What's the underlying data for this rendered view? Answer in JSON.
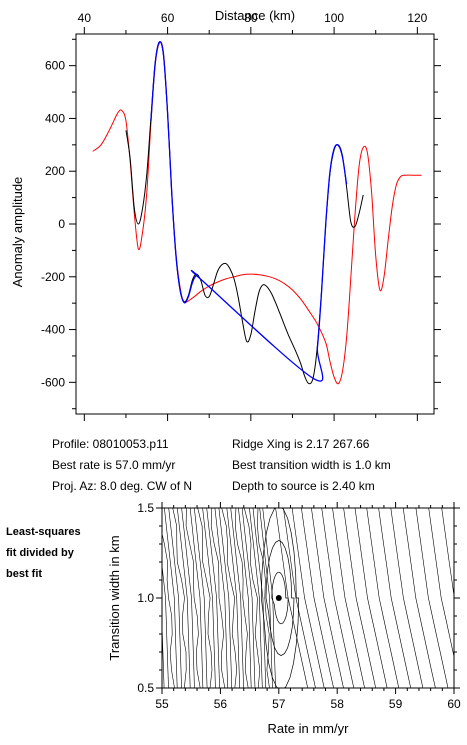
{
  "chart_data": [
    {
      "type": "line",
      "xlabel": "Distance (km)",
      "ylabel": "Anomaly amplitude",
      "xlim": [
        38,
        124
      ],
      "ylim": [
        -720,
        720
      ],
      "xticks": [
        40,
        60,
        80,
        100,
        120
      ],
      "yticks": [
        -600,
        -400,
        -200,
        0,
        200,
        400,
        600
      ],
      "series": [
        {
          "color": "#ff0000",
          "points": [
            [
              42,
              275
            ],
            [
              44,
              300
            ],
            [
              46,
              355
            ],
            [
              48,
              420
            ],
            [
              49,
              430
            ],
            [
              50,
              390
            ],
            [
              51,
              240
            ],
            [
              52,
              40
            ],
            [
              53,
              -95
            ],
            [
              54,
              -30
            ],
            [
              55,
              120
            ],
            [
              56,
              380
            ],
            [
              57,
              600
            ],
            [
              58,
              685
            ],
            [
              59,
              650
            ],
            [
              60,
              420
            ],
            [
              61,
              120
            ],
            [
              62,
              -110
            ],
            [
              63,
              -240
            ],
            [
              64,
              -295
            ],
            [
              66,
              -280
            ],
            [
              68,
              -255
            ],
            [
              70,
              -235
            ],
            [
              72,
              -220
            ],
            [
              74,
              -208
            ],
            [
              76,
              -200
            ],
            [
              78,
              -192
            ],
            [
              80,
              -190
            ],
            [
              82,
              -192
            ],
            [
              84,
              -198
            ],
            [
              86,
              -208
            ],
            [
              88,
              -225
            ],
            [
              90,
              -250
            ],
            [
              92,
              -285
            ],
            [
              94,
              -330
            ],
            [
              96,
              -380
            ],
            [
              98,
              -450
            ],
            [
              99,
              -520
            ],
            [
              100,
              -580
            ],
            [
              101,
              -605
            ],
            [
              102,
              -560
            ],
            [
              103,
              -430
            ],
            [
              104,
              -210
            ],
            [
              105,
              30
            ],
            [
              106,
              220
            ],
            [
              107,
              290
            ],
            [
              108,
              270
            ],
            [
              109,
              120
            ],
            [
              110,
              -120
            ],
            [
              111,
              -250
            ],
            [
              112,
              -200
            ],
            [
              113,
              -60
            ],
            [
              114,
              70
            ],
            [
              115,
              150
            ],
            [
              116,
              180
            ],
            [
              117,
              185
            ],
            [
              119,
              185
            ],
            [
              121,
              185
            ]
          ]
        },
        {
          "color": "#000000",
          "points": [
            [
              50,
              355
            ],
            [
              51,
              250
            ],
            [
              52,
              60
            ],
            [
              53,
              0
            ],
            [
              54,
              60
            ],
            [
              55,
              190
            ],
            [
              56,
              400
            ],
            [
              57,
              610
            ],
            [
              58,
              690
            ],
            [
              59,
              640
            ],
            [
              60,
              420
            ],
            [
              61,
              120
            ],
            [
              62,
              -120
            ],
            [
              63,
              -250
            ],
            [
              64,
              -295
            ],
            [
              65,
              -270
            ],
            [
              66,
              -210
            ],
            [
              67,
              -190
            ],
            [
              68,
              -215
            ],
            [
              69,
              -270
            ],
            [
              70,
              -275
            ],
            [
              71,
              -230
            ],
            [
              72,
              -180
            ],
            [
              73,
              -155
            ],
            [
              74,
              -150
            ],
            [
              75,
              -170
            ],
            [
              76,
              -210
            ],
            [
              77,
              -280
            ],
            [
              78,
              -370
            ],
            [
              79,
              -445
            ],
            [
              80,
              -420
            ],
            [
              81,
              -330
            ],
            [
              82,
              -255
            ],
            [
              83,
              -230
            ],
            [
              84,
              -240
            ],
            [
              85,
              -265
            ],
            [
              86,
              -300
            ],
            [
              87,
              -340
            ],
            [
              88,
              -380
            ],
            [
              89,
              -420
            ],
            [
              90,
              -455
            ],
            [
              91,
              -490
            ],
            [
              92,
              -530
            ],
            [
              93,
              -580
            ],
            [
              94,
              -605
            ],
            [
              95,
              -580
            ],
            [
              96,
              -460
            ],
            [
              97,
              -250
            ],
            [
              98,
              0
            ],
            [
              99,
              190
            ],
            [
              100,
              280
            ],
            [
              101,
              300
            ],
            [
              102,
              260
            ],
            [
              103,
              140
            ],
            [
              104,
              10
            ],
            [
              105,
              -10
            ],
            [
              106,
              40
            ],
            [
              107,
              110
            ]
          ]
        },
        {
          "color": "#0000ff",
          "points": [
            [
              56,
              390
            ],
            [
              57,
              605
            ],
            [
              58,
              688
            ],
            [
              59,
              645
            ],
            [
              60,
              420
            ],
            [
              61,
              120
            ],
            [
              62,
              -115
            ],
            [
              63,
              -250
            ],
            [
              64,
              -298
            ],
            [
              65,
              -275
            ],
            [
              66,
              -220
            ],
            [
              67,
              -195
            ],
            [
              68,
              -210
            ],
            [
              95,
              -585
            ],
            [
              96,
              -470
            ],
            [
              97,
              -255
            ],
            [
              98,
              5
            ],
            [
              99,
              195
            ],
            [
              100,
              285
            ],
            [
              101,
              298
            ],
            [
              102,
              255
            ],
            [
              103,
              150
            ]
          ]
        }
      ]
    },
    {
      "type": "heatmap",
      "xlabel": "Rate in mm/yr",
      "ylabel": "Transition width in km",
      "xlim": [
        55,
        60
      ],
      "ylim": [
        0.5,
        1.5
      ],
      "xticks": [
        55,
        56,
        57,
        58,
        59,
        60
      ],
      "yticks": [
        0.5,
        1.0,
        1.5
      ],
      "best_fit": {
        "rate": 57.0,
        "width": 1.0
      }
    }
  ],
  "info": {
    "profile": "Profile: 08010053.p11",
    "best_rate": "Best rate is 57.0 mm/yr",
    "proj_az": "Proj. Az: 8.0 deg. CW of N",
    "ridge_xing": "Ridge Xing is 2.17 267.66",
    "best_width": "Best transition width is 1.0 km",
    "depth": "Depth to source is   2.40 km"
  },
  "side_label": {
    "line1": "Least-squares",
    "line2": "fit divided by",
    "line3": "best fit"
  }
}
